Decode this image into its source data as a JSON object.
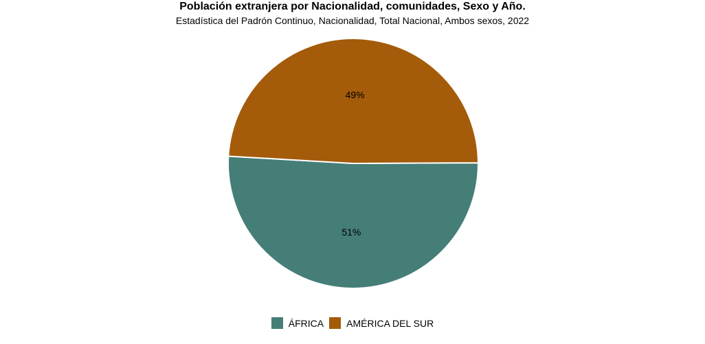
{
  "chart_data": {
    "type": "pie",
    "title": "Población extranjera por Nacionalidad, comunidades, Sexo y Año.",
    "subtitle": "Estadística del Padrón Continuo, Nacionalidad, Total Nacional, Ambos sexos, 2022",
    "categories": [
      "ÁFRICA",
      "AMÉRICA DEL SUR"
    ],
    "values": [
      51,
      49
    ],
    "data_labels": [
      "51%",
      "49%"
    ],
    "colors": [
      "#457e77",
      "#a45b0a"
    ],
    "legend": "bottom-center"
  }
}
